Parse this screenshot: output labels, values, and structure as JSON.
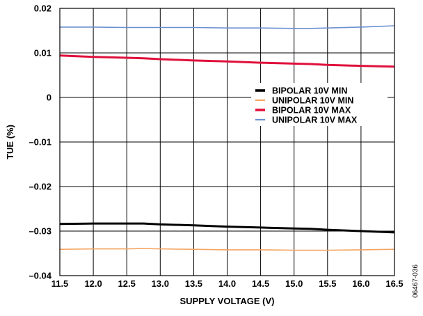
{
  "chart_data": {
    "type": "line",
    "xlabel": "SUPPLY VOLTAGE (V)",
    "ylabel": "TUE (%)",
    "xlim": [
      11.5,
      16.5
    ],
    "ylim": [
      -0.04,
      0.02
    ],
    "xticks": [
      "11.5",
      "12.0",
      "12.5",
      "13.0",
      "13.5",
      "14.0",
      "14.5",
      "15.0",
      "15.5",
      "16.0",
      "16.5"
    ],
    "yticks": [
      "0.02",
      "0.01",
      "0",
      "–0.01",
      "–0.02",
      "–0.03",
      "–0.04"
    ],
    "grid": true,
    "legend_position": "right, upper-middle",
    "x": [
      11.5,
      12.0,
      12.5,
      12.75,
      13.0,
      13.5,
      14.0,
      14.5,
      15.0,
      15.25,
      15.5,
      16.0,
      16.5
    ],
    "series": [
      {
        "name": "BIPOLAR 10V MIN",
        "color": "#000000",
        "width": 3,
        "values": [
          -0.0284,
          -0.0283,
          -0.0283,
          -0.0283,
          -0.0285,
          -0.0287,
          -0.029,
          -0.0292,
          -0.0294,
          -0.0295,
          -0.0297,
          -0.03,
          -0.0303
        ]
      },
      {
        "name": "UNIPOLAR 10V MIN",
        "color": "#f4a460",
        "width": 1.6,
        "values": [
          -0.0341,
          -0.034,
          -0.034,
          -0.0339,
          -0.034,
          -0.0341,
          -0.0342,
          -0.0342,
          -0.0343,
          -0.0343,
          -0.0343,
          -0.0342,
          -0.0341
        ]
      },
      {
        "name": "BIPOLAR 10V MAX",
        "color": "#e0103c",
        "width": 3,
        "values": [
          0.0094,
          0.0091,
          0.0089,
          0.0088,
          0.0086,
          0.0083,
          0.0081,
          0.0078,
          0.0076,
          0.0075,
          0.0073,
          0.0071,
          0.0069
        ]
      },
      {
        "name": "UNIPOLAR 10V MAX",
        "color": "#6b8fd0",
        "width": 1.6,
        "values": [
          0.0158,
          0.0158,
          0.0157,
          0.0157,
          0.0157,
          0.0157,
          0.0156,
          0.0156,
          0.0155,
          0.0155,
          0.0156,
          0.0158,
          0.0161
        ]
      }
    ],
    "figure_id": "06467-036"
  }
}
